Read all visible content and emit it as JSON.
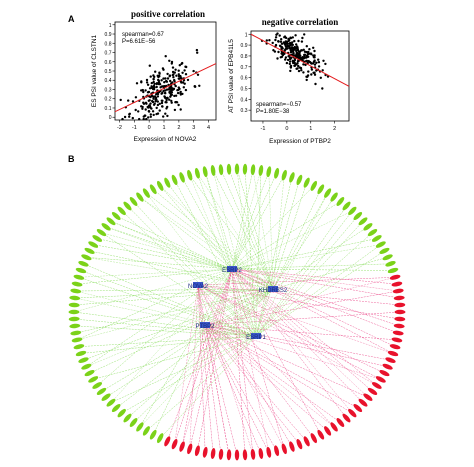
{
  "panels": {
    "a_letter": "A",
    "b_letter": "B"
  },
  "chart_data": [
    {
      "type": "scatter",
      "title": "positive correlation",
      "xlabel": "Expression of NOVA2",
      "ylabel": "ES PSI value of CLSTN1",
      "xlim": [
        -2.3,
        4.5
      ],
      "ylim": [
        -0.03,
        1.03
      ],
      "xticks": [
        "-2",
        "-1",
        "0",
        "1",
        "2",
        "3",
        "4"
      ],
      "yticks": [
        "0",
        "0.1",
        "0.2",
        "0.3",
        "0.4",
        "0.5",
        "0.6",
        "0.7",
        "0.8",
        "0.9",
        "1"
      ],
      "xtick_values": [
        -2,
        -1,
        0,
        1,
        2,
        3,
        4
      ],
      "ytick_values": [
        0,
        0.1,
        0.2,
        0.3,
        0.4,
        0.5,
        0.6,
        0.7,
        0.8,
        0.9,
        1
      ],
      "annotations": [
        "spearman=0.67",
        "P=6.61E−56"
      ],
      "fit_line": {
        "x": [
          -2.3,
          4.5
        ],
        "y": [
          0.06,
          0.58
        ]
      },
      "point_color": "#000000",
      "line_color": "#e41a1c",
      "n_points": 280,
      "x_center": 0.9,
      "x_spread": 1.0,
      "slope": 0.077,
      "intercept": 0.22,
      "noise": 0.13
    },
    {
      "type": "scatter",
      "title": "negative correlation",
      "xlabel": "Expression of PTBP2",
      "ylabel": "AT PSI value of EPB41L5",
      "xlim": [
        -1.5,
        2.6
      ],
      "ylim": [
        0.2,
        1.03
      ],
      "xticks": [
        "-1",
        "0",
        "1",
        "2"
      ],
      "yticks": [
        "0.3",
        "0.4",
        "0.5",
        "0.6",
        "0.7",
        "0.8",
        "0.9",
        "1"
      ],
      "xtick_values": [
        -1,
        0,
        1,
        2
      ],
      "ytick_values": [
        0.3,
        0.4,
        0.5,
        0.6,
        0.7,
        0.8,
        0.9,
        1
      ],
      "annotations": [
        "spearman=−0.57",
        "P=1.80E−38"
      ],
      "fit_line": {
        "x": [
          -1.5,
          2.6
        ],
        "y": [
          1.0,
          0.52
        ]
      },
      "point_color": "#000000",
      "line_color": "#e41a1c",
      "n_points": 260,
      "x_center": 0.3,
      "x_spread": 0.5,
      "slope": -0.12,
      "intercept": 0.86,
      "noise": 0.07
    }
  ],
  "network": {
    "hubs": [
      {
        "label": "NOVA2"
      },
      {
        "label": "ESRP2"
      },
      {
        "label": "KHDRBS2"
      },
      {
        "label": "PTBP2"
      },
      {
        "label": "ESRP1"
      }
    ],
    "n_nodes": 128,
    "colors": {
      "positive_node": "#e8122c",
      "negative_node": "#7bd219",
      "positive_edge": "#e8327a",
      "negative_edge": "#7bd84a",
      "hub": "#3a56c8"
    }
  }
}
